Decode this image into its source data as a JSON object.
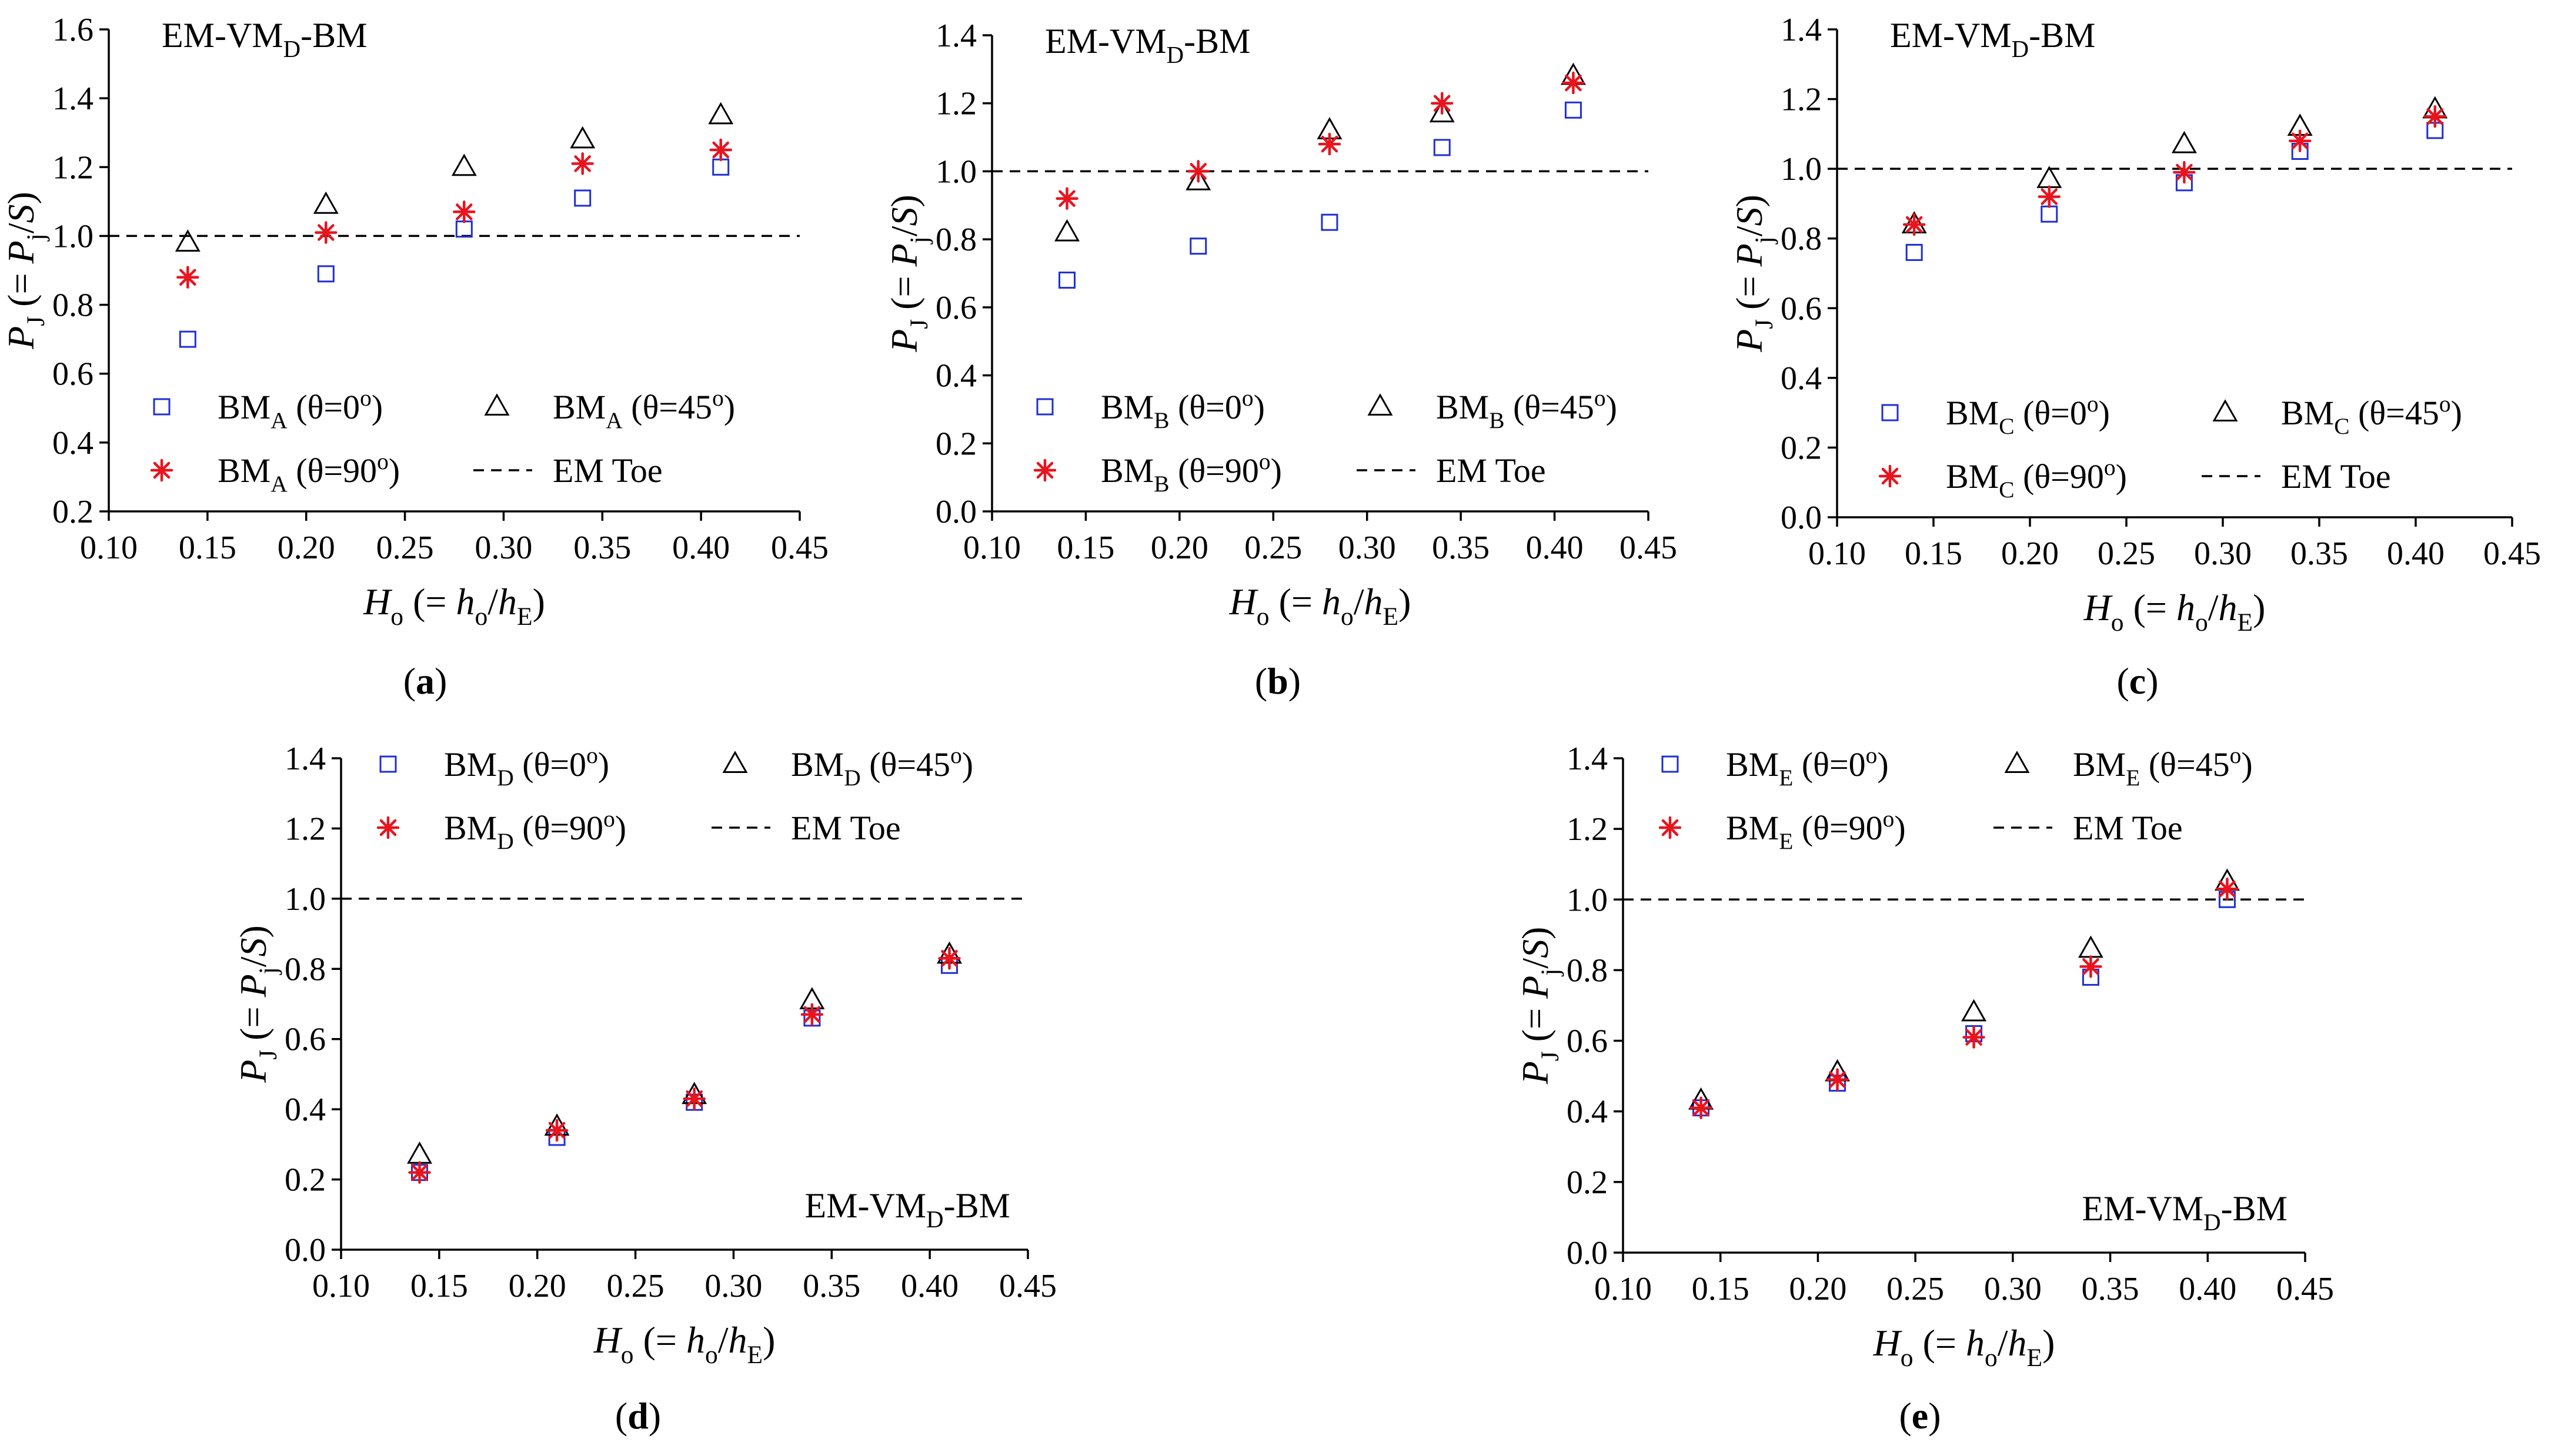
{
  "figure": {
    "common": {
      "x_label": {
        "main": "H",
        "main_sub": "o",
        "mid": " (= h",
        "mid_sub": "o",
        "slash": "/h",
        "end_sub": "E",
        "close": ")"
      },
      "y_label": {
        "main": "P",
        "main_sub": "J",
        "mid": " (= P",
        "mid_sub": "j",
        "end": "/S)"
      },
      "em_toe_label": "EM Toe",
      "em_toe_value": 1.0,
      "series_styles": {
        "theta0": {
          "marker": "square",
          "color": "#1f2fd6"
        },
        "theta45": {
          "marker": "triangle",
          "color": "#000000"
        },
        "theta90": {
          "marker": "asterisk",
          "color": "#e8141e"
        },
        "em_toe": {
          "line": "dashed",
          "color": "#000000"
        }
      }
    }
  },
  "chart_data": [
    {
      "id": "a",
      "type": "scatter",
      "panel_label": "a",
      "title": {
        "pre": "EM-VM",
        "sub": "D",
        "post": "-BM"
      },
      "xlim": [
        0.1,
        0.45
      ],
      "ylim": [
        0.2,
        1.6
      ],
      "x_ticks": [
        "0.10",
        "0.15",
        "0.20",
        "0.25",
        "0.30",
        "0.35",
        "0.40",
        "0.45"
      ],
      "y_ticks": [
        "0.2",
        "0.4",
        "0.6",
        "0.8",
        "1.0",
        "1.2",
        "1.4",
        "1.6"
      ],
      "x": [
        0.14,
        0.21,
        0.28,
        0.34,
        0.41
      ],
      "series": [
        {
          "key": "theta0",
          "name": "BMA (θ=0°)",
          "label": {
            "pre": "BM",
            "sub": "A",
            "post": " (θ=0",
            "sup": "o",
            "close": ")"
          },
          "values": [
            0.7,
            0.89,
            1.02,
            1.11,
            1.2
          ]
        },
        {
          "key": "theta45",
          "name": "BMA (θ=45°)",
          "label": {
            "pre": "BM",
            "sub": "A",
            "post": " (θ=45",
            "sup": "o",
            "close": ")"
          },
          "values": [
            0.98,
            1.09,
            1.2,
            1.28,
            1.35
          ]
        },
        {
          "key": "theta90",
          "name": "BMA (θ=90°)",
          "label": {
            "pre": "BM",
            "sub": "A",
            "post": " (θ=90",
            "sup": "o",
            "close": ")"
          },
          "values": [
            0.88,
            1.01,
            1.07,
            1.21,
            1.25
          ]
        }
      ]
    },
    {
      "id": "b",
      "type": "scatter",
      "panel_label": "b",
      "title": {
        "pre": "EM-VM",
        "sub": "D",
        "post": "-BM"
      },
      "xlim": [
        0.1,
        0.45
      ],
      "ylim": [
        0.0,
        1.4
      ],
      "x_ticks": [
        "0.10",
        "0.15",
        "0.20",
        "0.25",
        "0.30",
        "0.35",
        "0.40",
        "0.45"
      ],
      "y_ticks": [
        "0.0",
        "0.2",
        "0.4",
        "0.6",
        "0.8",
        "1.0",
        "1.2",
        "1.4"
      ],
      "x": [
        0.14,
        0.21,
        0.28,
        0.34,
        0.41
      ],
      "series": [
        {
          "key": "theta0",
          "name": "BMB (θ=0°)",
          "label": {
            "pre": "BM",
            "sub": "B",
            "post": " (θ=0",
            "sup": "o",
            "close": ")"
          },
          "values": [
            0.68,
            0.78,
            0.85,
            1.07,
            1.18
          ]
        },
        {
          "key": "theta45",
          "name": "BMB (θ=45°)",
          "label": {
            "pre": "BM",
            "sub": "B",
            "post": " (θ=45",
            "sup": "o",
            "close": ")"
          },
          "values": [
            0.82,
            0.97,
            1.12,
            1.17,
            1.28
          ]
        },
        {
          "key": "theta90",
          "name": "BMB (θ=90°)",
          "label": {
            "pre": "BM",
            "sub": "B",
            "post": " (θ=90",
            "sup": "o",
            "close": ")"
          },
          "values": [
            0.92,
            1.0,
            1.08,
            1.2,
            1.26
          ]
        }
      ]
    },
    {
      "id": "c",
      "type": "scatter",
      "panel_label": "c",
      "title": {
        "pre": "EM-VM",
        "sub": "D",
        "post": "-BM"
      },
      "xlim": [
        0.1,
        0.45
      ],
      "ylim": [
        0.0,
        1.4
      ],
      "x_ticks": [
        "0.10",
        "0.15",
        "0.20",
        "0.25",
        "0.30",
        "0.35",
        "0.40",
        "0.45"
      ],
      "y_ticks": [
        "0.0",
        "0.2",
        "0.4",
        "0.6",
        "0.8",
        "1.0",
        "1.2",
        "1.4"
      ],
      "x": [
        0.14,
        0.21,
        0.28,
        0.34,
        0.41
      ],
      "series": [
        {
          "key": "theta0",
          "name": "BMC (θ=0°)",
          "label": {
            "pre": "BM",
            "sub": "C",
            "post": " (θ=0",
            "sup": "o",
            "close": ")"
          },
          "values": [
            0.76,
            0.87,
            0.96,
            1.05,
            1.11
          ]
        },
        {
          "key": "theta45",
          "name": "BMC (θ=45°)",
          "label": {
            "pre": "BM",
            "sub": "C",
            "post": " (θ=45",
            "sup": "o",
            "close": ")"
          },
          "values": [
            0.84,
            0.97,
            1.07,
            1.12,
            1.17
          ]
        },
        {
          "key": "theta90",
          "name": "BMC (θ=90°)",
          "label": {
            "pre": "BM",
            "sub": "C",
            "post": " (θ=90",
            "sup": "o",
            "close": ")"
          },
          "values": [
            0.84,
            0.92,
            0.99,
            1.08,
            1.15
          ]
        }
      ]
    },
    {
      "id": "d",
      "type": "scatter",
      "panel_label": "d",
      "title": {
        "pre": "EM-VM",
        "sub": "D",
        "post": "-BM"
      },
      "xlim": [
        0.1,
        0.45
      ],
      "ylim": [
        0.0,
        1.4
      ],
      "x_ticks": [
        "0.10",
        "0.15",
        "0.20",
        "0.25",
        "0.30",
        "0.35",
        "0.40",
        "0.45"
      ],
      "y_ticks": [
        "0.0",
        "0.2",
        "0.4",
        "0.6",
        "0.8",
        "1.0",
        "1.2",
        "1.4"
      ],
      "x": [
        0.14,
        0.21,
        0.28,
        0.34,
        0.41
      ],
      "series": [
        {
          "key": "theta0",
          "name": "BMD (θ=0°)",
          "label": {
            "pre": "BM",
            "sub": "D",
            "post": " (θ=0",
            "sup": "o",
            "close": ")"
          },
          "values": [
            0.22,
            0.32,
            0.42,
            0.66,
            0.81
          ]
        },
        {
          "key": "theta45",
          "name": "BMD (θ=45°)",
          "label": {
            "pre": "BM",
            "sub": "D",
            "post": " (θ=45",
            "sup": "o",
            "close": ")"
          },
          "values": [
            0.27,
            0.35,
            0.44,
            0.71,
            0.84
          ]
        },
        {
          "key": "theta90",
          "name": "BMD (θ=90°)",
          "label": {
            "pre": "BM",
            "sub": "D",
            "post": " (θ=90",
            "sup": "o",
            "close": ")"
          },
          "values": [
            0.22,
            0.34,
            0.43,
            0.67,
            0.83
          ]
        }
      ]
    },
    {
      "id": "e",
      "type": "scatter",
      "panel_label": "e",
      "title": {
        "pre": "EM-VM",
        "sub": "D",
        "post": "-BM"
      },
      "xlim": [
        0.1,
        0.45
      ],
      "ylim": [
        0.0,
        1.4
      ],
      "x_ticks": [
        "0.10",
        "0.15",
        "0.20",
        "0.25",
        "0.30",
        "0.35",
        "0.40",
        "0.45"
      ],
      "y_ticks": [
        "0.0",
        "0.2",
        "0.4",
        "0.6",
        "0.8",
        "1.0",
        "1.2",
        "1.4"
      ],
      "x": [
        0.14,
        0.21,
        0.28,
        0.34,
        0.41
      ],
      "series": [
        {
          "key": "theta0",
          "name": "BME (θ=0°)",
          "label": {
            "pre": "BM",
            "sub": "E",
            "post": " (θ=0",
            "sup": "o",
            "close": ")"
          },
          "values": [
            0.41,
            0.48,
            0.62,
            0.78,
            1.0
          ]
        },
        {
          "key": "theta45",
          "name": "BME (θ=45°)",
          "label": {
            "pre": "BM",
            "sub": "E",
            "post": " (θ=45",
            "sup": "o",
            "close": ")"
          },
          "values": [
            0.43,
            0.51,
            0.68,
            0.86,
            1.05
          ]
        },
        {
          "key": "theta90",
          "name": "BME (θ=90°)",
          "label": {
            "pre": "BM",
            "sub": "E",
            "post": " (θ=90",
            "sup": "o",
            "close": ")"
          },
          "values": [
            0.41,
            0.49,
            0.61,
            0.81,
            1.03
          ]
        }
      ]
    }
  ]
}
